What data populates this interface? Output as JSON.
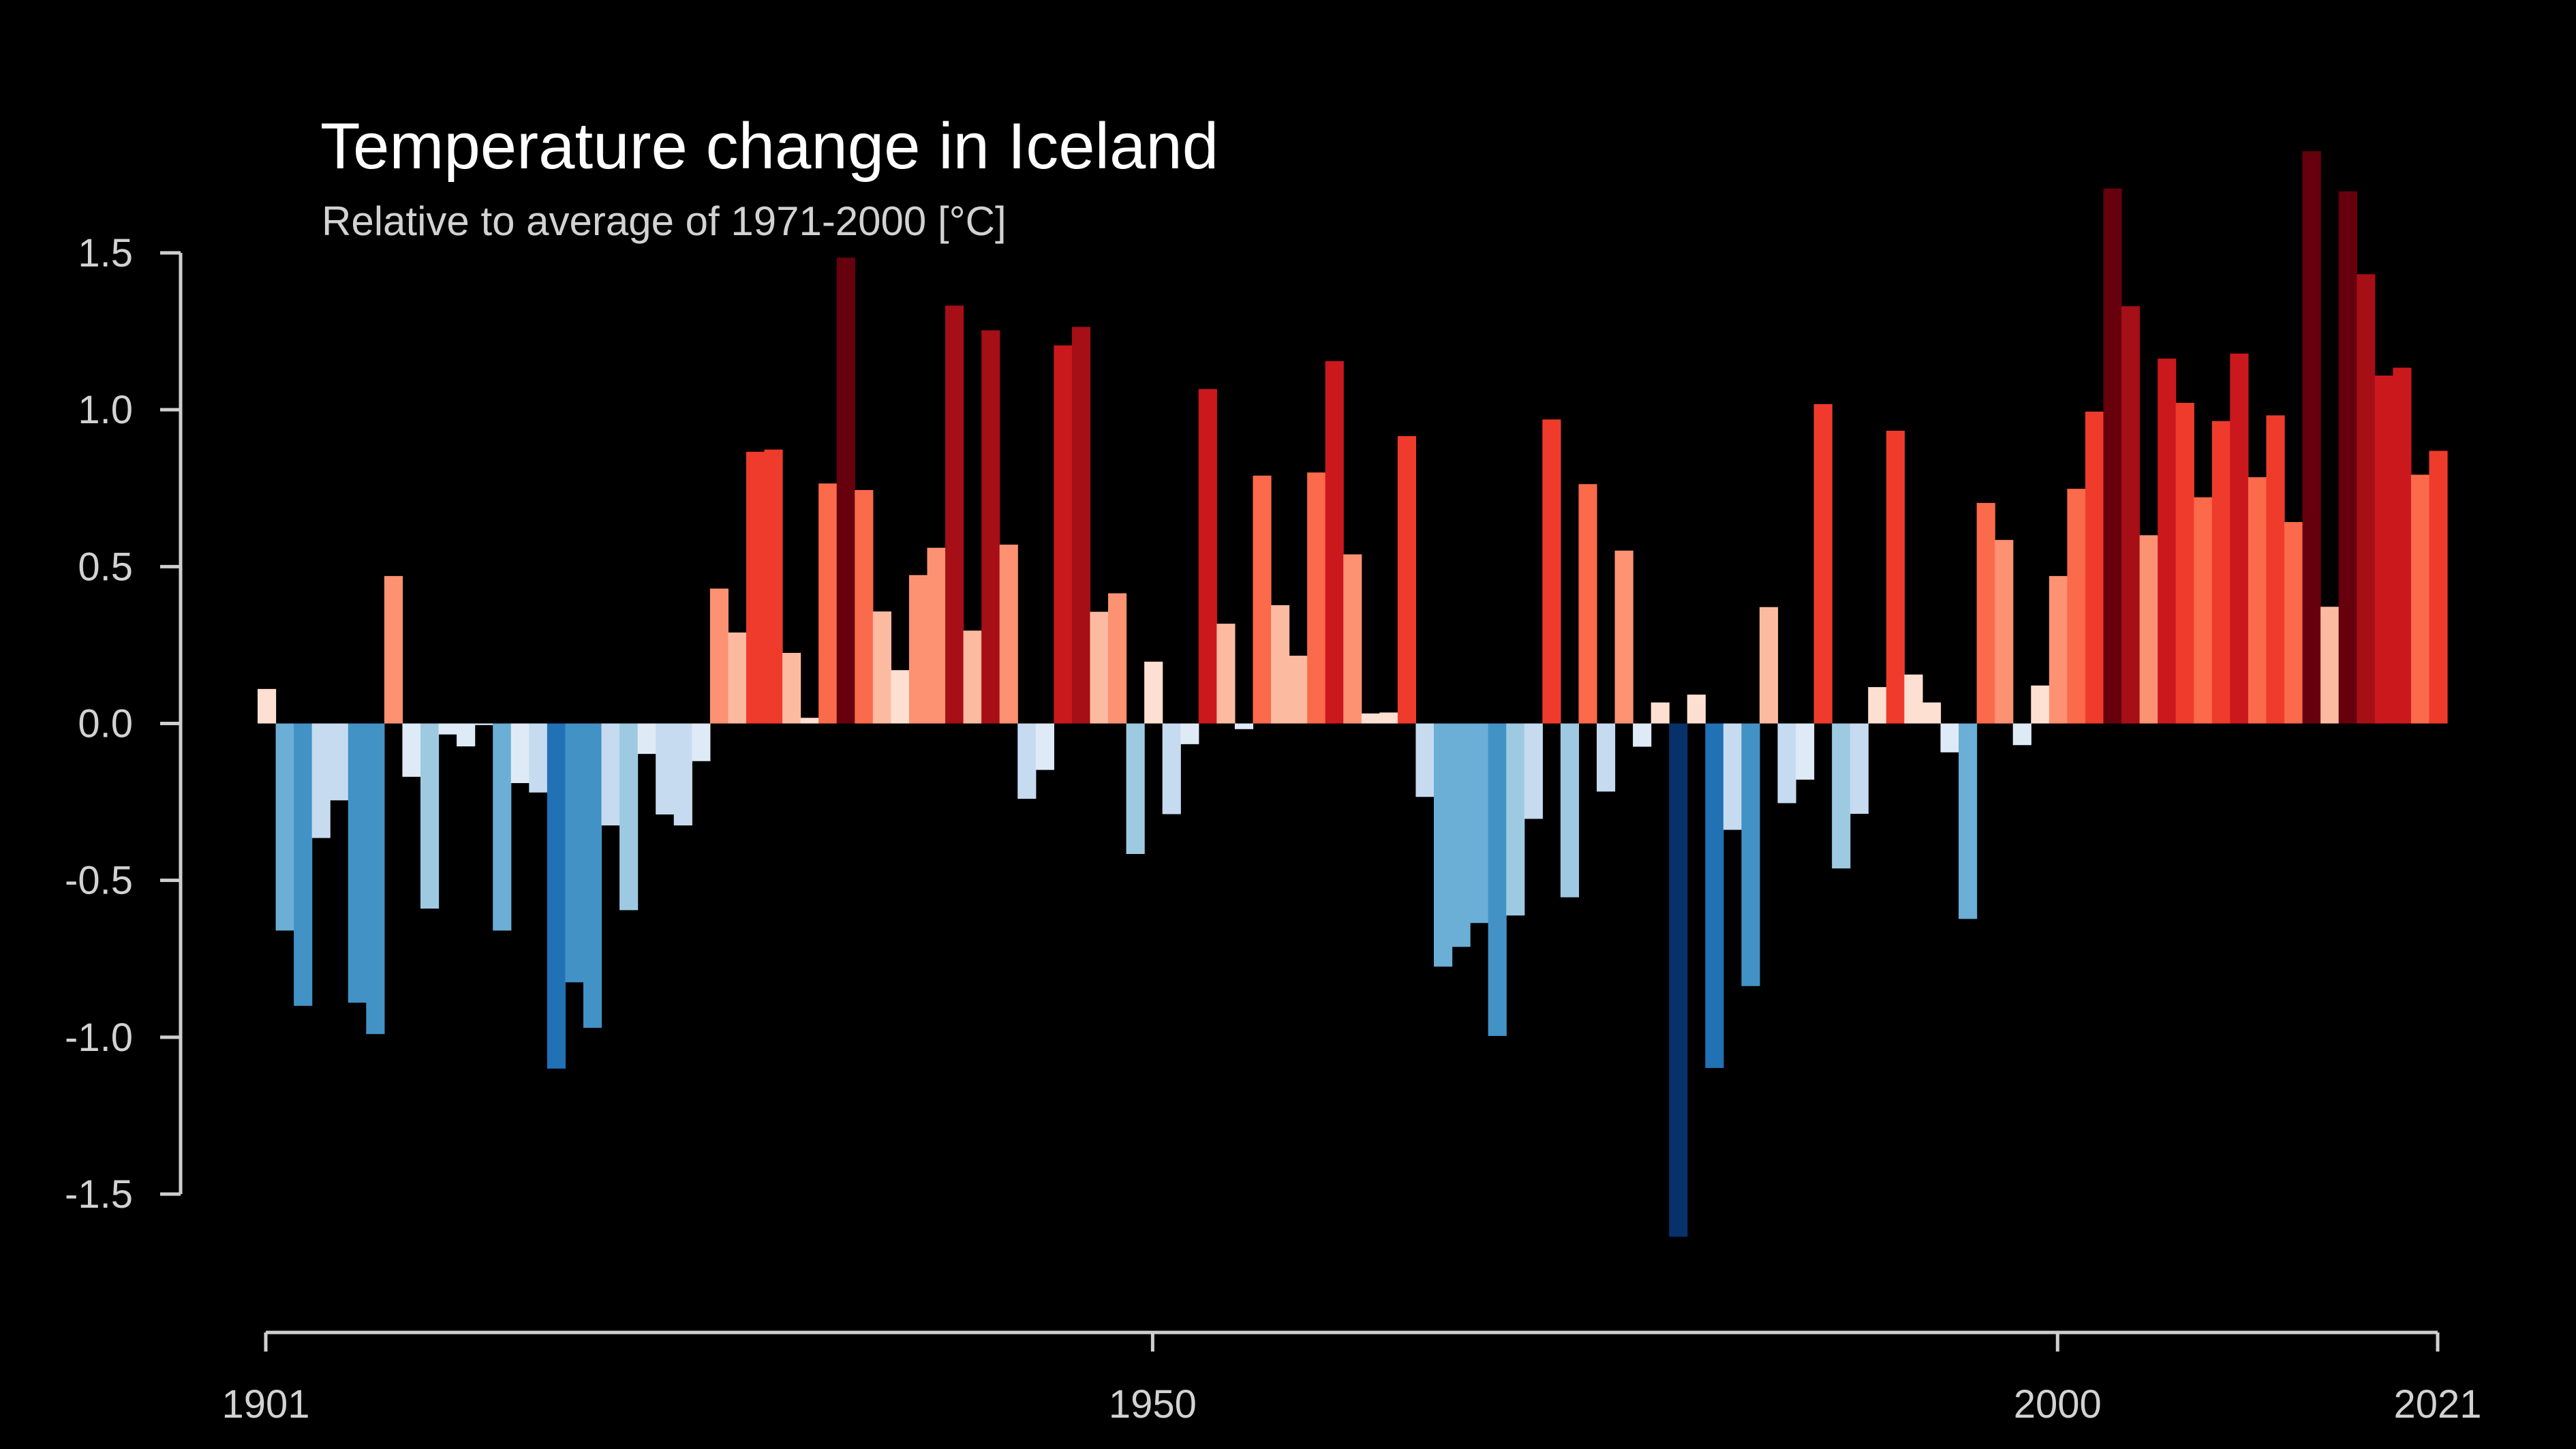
{
  "chart_data": {
    "type": "bar",
    "title": "Temperature change in Iceland",
    "subtitle": "Relative to average of 1971-2000  [°C]",
    "xlabel": "",
    "ylabel": "",
    "ylim": [
      -1.5,
      1.5
    ],
    "xlim": [
      1901,
      2021
    ],
    "yticks": [
      1.5,
      1.0,
      0.5,
      0.0,
      -0.5,
      -1.0,
      -1.5
    ],
    "ytick_labels": [
      "1.5",
      "1.0",
      "0.5",
      "0.0",
      "-0.5",
      "-1.0",
      "-1.5"
    ],
    "xticks": [
      1901,
      1950,
      2000,
      2021
    ],
    "xtick_labels": [
      "1901",
      "1950",
      "2000",
      "2021"
    ],
    "grid": false,
    "legend": "none",
    "background": "#000000",
    "axis_color": "#cfcfcf",
    "palette": [
      "#08306b",
      "#08519c",
      "#2171b5",
      "#4292c6",
      "#6baed6",
      "#9ecae1",
      "#c6dbef",
      "#deebf7",
      "#fee0d2",
      "#fcbba1",
      "#fc9272",
      "#fb6a4a",
      "#ef3b2c",
      "#cb181d",
      "#a50f15",
      "#67000d"
    ],
    "start_year": 1901,
    "values": [
      0.11,
      -0.66,
      -0.9,
      -0.365,
      -0.245,
      -0.89,
      -0.99,
      0.47,
      -0.17,
      -0.59,
      -0.035,
      -0.073,
      -0.005,
      -0.66,
      -0.19,
      -0.22,
      -1.1,
      -0.825,
      -0.97,
      -0.325,
      -0.595,
      -0.097,
      -0.29,
      -0.325,
      -0.12,
      0.43,
      0.29,
      0.866,
      0.873,
      0.225,
      0.018,
      0.765,
      1.485,
      0.744,
      0.357,
      0.17,
      0.473,
      0.56,
      1.332,
      0.296,
      1.253,
      0.57,
      -0.24,
      -0.148,
      1.205,
      1.264,
      0.356,
      0.415,
      -0.416,
      0.197,
      -0.289,
      -0.066,
      1.066,
      0.318,
      -0.018,
      0.79,
      0.377,
      0.216,
      0.8,
      1.155,
      0.539,
      0.032,
      0.035,
      0.916,
      -0.234,
      -0.775,
      -0.712,
      -0.636,
      -0.996,
      -0.612,
      -0.304,
      0.969,
      -0.554,
      0.763,
      -0.217,
      0.551,
      -0.074,
      0.067,
      -1.636,
      0.092,
      -1.098,
      -0.339,
      -0.837,
      0.371,
      -0.254,
      -0.179,
      1.018,
      -0.462,
      -0.288,
      0.116,
      0.933,
      0.156,
      0.067,
      -0.092,
      -0.623,
      0.703,
      0.585,
      -0.069,
      0.121,
      0.47,
      0.748,
      0.994,
      1.705,
      1.33,
      0.6,
      1.163,
      1.022,
      0.721,
      0.964,
      1.179,
      0.785,
      0.982,
      0.642,
      1.824,
      0.372,
      1.696,
      1.432,
      1.109,
      1.134,
      0.793,
      0.869
    ],
    "color_index": [
      8,
      4,
      3,
      6,
      6,
      3,
      3,
      10,
      7,
      5,
      7,
      7,
      7,
      4,
      7,
      6,
      2,
      3,
      3,
      6,
      5,
      7,
      6,
      6,
      7,
      10,
      9,
      12,
      12,
      9,
      8,
      11,
      15,
      11,
      9,
      8,
      10,
      10,
      14,
      9,
      14,
      10,
      6,
      7,
      13,
      14,
      9,
      10,
      5,
      8,
      6,
      7,
      13,
      9,
      7,
      11,
      9,
      9,
      11,
      13,
      10,
      8,
      8,
      12,
      6,
      4,
      4,
      4,
      3,
      5,
      6,
      12,
      5,
      11,
      6,
      10,
      7,
      8,
      0,
      8,
      2,
      6,
      3,
      9,
      6,
      7,
      12,
      5,
      6,
      8,
      12,
      8,
      8,
      7,
      4,
      11,
      10,
      7,
      8,
      10,
      11,
      12,
      15,
      14,
      10,
      13,
      12,
      11,
      12,
      13,
      11,
      12,
      11,
      15,
      9,
      15,
      14,
      13,
      13,
      11,
      12
    ]
  }
}
